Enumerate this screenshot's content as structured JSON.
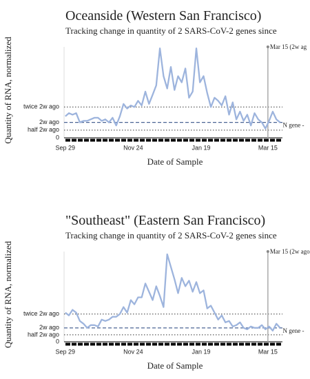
{
  "chart_data": [
    {
      "type": "line",
      "title": "Oceanside (Western San Francisco)",
      "subtitle": "Tracking change in quantity of 2 SARS-CoV-2 genes since",
      "y_label": "Quantity of RNA, normalized",
      "x_label": "Date of Sample",
      "annotation": "Mar 15 (2w ag",
      "x": [
        "Sep 29",
        "Oct 2",
        "Oct 5",
        "Oct 8",
        "Oct 11",
        "Oct 14",
        "Oct 17",
        "Oct 20",
        "Oct 23",
        "Oct 26",
        "Oct 29",
        "Nov 1",
        "Nov 4",
        "Nov 7",
        "Nov 10",
        "Nov 13",
        "Nov 16",
        "Nov 19",
        "Nov 22",
        "Nov 25",
        "Nov 28",
        "Dec 1",
        "Dec 4",
        "Dec 7",
        "Dec 10",
        "Dec 13",
        "Dec 16",
        "Dec 19",
        "Dec 22",
        "Dec 25",
        "Dec 28",
        "Dec 31",
        "Jan 3",
        "Jan 6",
        "Jan 9",
        "Jan 12",
        "Jan 15",
        "Jan 18",
        "Jan 21",
        "Jan 24",
        "Jan 27",
        "Jan 30",
        "Feb 2",
        "Feb 5",
        "Feb 8",
        "Feb 11",
        "Feb 14",
        "Feb 17",
        "Feb 20",
        "Feb 23",
        "Feb 26",
        "Mar 1",
        "Mar 4",
        "Mar 7",
        "Mar 10",
        "Mar 13",
        "Mar 16",
        "Mar 19",
        "Mar 22",
        "Mar 25"
      ],
      "series": [
        {
          "name": "N gene -",
          "color": "#9db4dd",
          "values": [
            1.4,
            1.6,
            1.5,
            1.6,
            1.0,
            1.1,
            1.1,
            1.2,
            1.3,
            1.3,
            1.1,
            1.2,
            1.0,
            1.3,
            0.8,
            1.4,
            2.2,
            1.9,
            2.1,
            2.0,
            2.4,
            2.1,
            3.0,
            2.2,
            2.8,
            3.4,
            5.8,
            4.0,
            3.2,
            4.6,
            3.1,
            4.0,
            3.6,
            4.5,
            2.6,
            3.0,
            5.8,
            3.6,
            4.0,
            2.9,
            2.0,
            2.6,
            2.4,
            2.1,
            2.7,
            1.5,
            2.3,
            1.2,
            1.7,
            1.1,
            1.5,
            0.8,
            1.6,
            1.2,
            1.0,
            0.6,
            1.1,
            1.7,
            1.2,
            1.0
          ]
        }
      ],
      "xlim": [
        "Sep 28",
        "Mar 27"
      ],
      "xticks": [
        "Sep 29",
        "Nov 24",
        "Jan 19",
        "Mar 15"
      ],
      "ylim": [
        0,
        5.9
      ],
      "yticks": [
        0,
        {
          "value": 0.5,
          "label": "half 2w ago"
        },
        {
          "value": 1,
          "label": "2w ago"
        },
        {
          "value": 2,
          "label": "twice 2w ago"
        }
      ]
    },
    {
      "type": "line",
      "title": "\"Southeast\" (Eastern San Francisco)",
      "subtitle": "Tracking change in quantity of 2 SARS-CoV-2 genes since",
      "y_label": "Quantity of RNA, normalized",
      "x_label": "Date of Sample",
      "annotation": "Mar 15 (2w ago",
      "x": [
        "Sep 29",
        "Oct 2",
        "Oct 5",
        "Oct 8",
        "Oct 11",
        "Oct 14",
        "Oct 17",
        "Oct 20",
        "Oct 23",
        "Oct 26",
        "Oct 29",
        "Nov 1",
        "Nov 4",
        "Nov 7",
        "Nov 10",
        "Nov 13",
        "Nov 16",
        "Nov 19",
        "Nov 22",
        "Nov 25",
        "Nov 28",
        "Dec 1",
        "Dec 4",
        "Dec 7",
        "Dec 10",
        "Dec 13",
        "Dec 16",
        "Dec 19",
        "Dec 22",
        "Dec 25",
        "Dec 28",
        "Dec 31",
        "Jan 3",
        "Jan 6",
        "Jan 9",
        "Jan 12",
        "Jan 15",
        "Jan 18",
        "Jan 21",
        "Jan 24",
        "Jan 27",
        "Jan 30",
        "Feb 2",
        "Feb 5",
        "Feb 8",
        "Feb 11",
        "Feb 14",
        "Feb 17",
        "Feb 20",
        "Feb 23",
        "Feb 26",
        "Mar 1",
        "Mar 4",
        "Mar 7",
        "Mar 10",
        "Mar 13",
        "Mar 16",
        "Mar 19",
        "Mar 22",
        "Mar 25"
      ],
      "series": [
        {
          "name": "N gene -",
          "color": "#9db4dd",
          "values": [
            2.1,
            1.9,
            2.3,
            2.1,
            1.5,
            1.3,
            1.0,
            1.2,
            1.2,
            1.1,
            1.6,
            1.5,
            1.6,
            1.8,
            1.8,
            2.0,
            2.5,
            2.1,
            3.0,
            2.7,
            3.2,
            3.2,
            4.2,
            3.6,
            3.0,
            4.0,
            3.3,
            2.5,
            6.3,
            5.4,
            4.5,
            3.5,
            4.6,
            4.0,
            4.4,
            3.6,
            4.3,
            3.5,
            3.7,
            2.4,
            2.6,
            2.1,
            1.6,
            1.9,
            1.4,
            1.5,
            1.1,
            1.2,
            1.4,
            1.0,
            0.9,
            1.1,
            1.0,
            1.0,
            1.2,
            0.9,
            1.1,
            0.8,
            1.3,
            1.0
          ]
        }
      ],
      "xlim": [
        "Sep 28",
        "Mar 27"
      ],
      "xticks": [
        "Sep 29",
        "Nov 24",
        "Jan 19",
        "Mar 15"
      ],
      "ylim": [
        0,
        6.5
      ],
      "yticks": [
        0,
        {
          "value": 0.5,
          "label": "half 2w ago"
        },
        {
          "value": 1,
          "label": "2w ago"
        },
        {
          "value": 2,
          "label": "twice 2w ago"
        }
      ]
    }
  ]
}
